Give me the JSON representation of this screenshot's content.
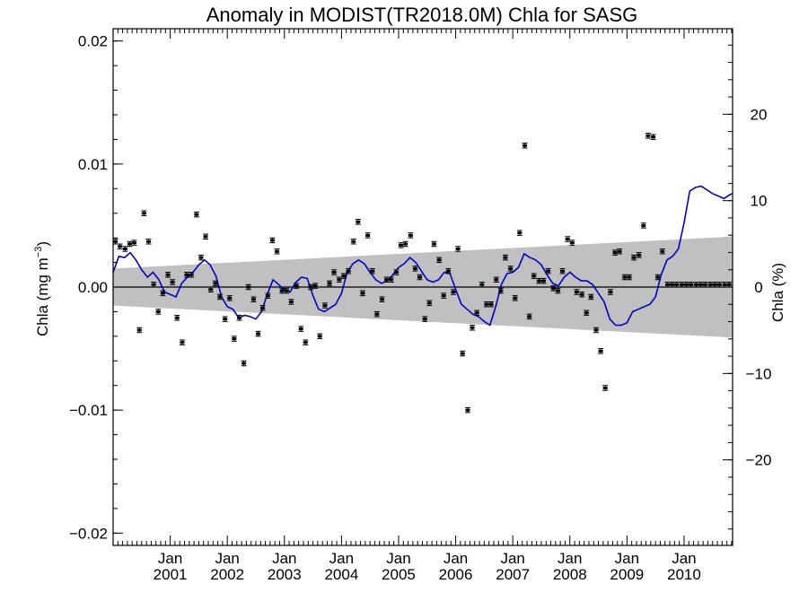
{
  "chart_data": {
    "type": "scatter",
    "title": "Anomaly in MODIST(TR2018.0M) Chla for SASG",
    "ylabel_left": {
      "main": "Chla (mg m",
      "sup": "−3",
      "close": ")"
    },
    "ylabel_right": "Chla (%)",
    "ylim_left": [
      -0.021,
      0.021
    ],
    "ylim_right": [
      -29.9,
      29.9
    ],
    "left_ticks": [
      {
        "value": 0.02,
        "label": "0.02"
      },
      {
        "value": 0.01,
        "label": "0.01"
      },
      {
        "value": 0.0,
        "label": "0.00"
      },
      {
        "value": -0.01,
        "label": "−0.01"
      },
      {
        "value": -0.02,
        "label": "−0.02"
      }
    ],
    "right_ticks": [
      {
        "value": 20,
        "label": "20"
      },
      {
        "value": 10,
        "label": "10"
      },
      {
        "value": 0,
        "label": "0"
      },
      {
        "value": -10,
        "label": "−10"
      },
      {
        "value": -20,
        "label": "−20"
      }
    ],
    "x_range_years": [
      2000.0,
      2010.85
    ],
    "x_ticks": [
      {
        "value": 2001.0,
        "month": "Jan",
        "year": "2001"
      },
      {
        "value": 2002.0,
        "month": "Jan",
        "year": "2002"
      },
      {
        "value": 2003.0,
        "month": "Jan",
        "year": "2003"
      },
      {
        "value": 2004.0,
        "month": "Jan",
        "year": "2004"
      },
      {
        "value": 2005.0,
        "month": "Jan",
        "year": "2005"
      },
      {
        "value": 2006.0,
        "month": "Jan",
        "year": "2006"
      },
      {
        "value": 2007.0,
        "month": "Jan",
        "year": "2007"
      },
      {
        "value": 2008.0,
        "month": "Jan",
        "year": "2008"
      },
      {
        "value": 2009.0,
        "month": "Jan",
        "year": "2009"
      },
      {
        "value": 2010.0,
        "month": "Jan",
        "year": "2010"
      }
    ],
    "band": {
      "x": [
        2000.0,
        2010.85
      ],
      "upper": [
        0.0015,
        0.0041
      ],
      "lower": [
        -0.0015,
        -0.0041
      ],
      "color": "#c0c0c0"
    },
    "line_color": "#0000cc",
    "points_color": "#000000",
    "errorbar_halfwidth": 0.0002,
    "series": [
      {
        "kind": "monthly_anomaly",
        "x": [
          2000.04,
          2000.12,
          2000.21,
          2000.29,
          2000.37,
          2000.46,
          2000.54,
          2000.62,
          2000.71,
          2000.79,
          2000.87,
          2000.96,
          2001.04,
          2001.12,
          2001.21,
          2001.29,
          2001.37,
          2001.46,
          2001.54,
          2001.62,
          2001.71,
          2001.79,
          2001.87,
          2001.96,
          2002.04,
          2002.12,
          2002.21,
          2002.29,
          2002.37,
          2002.46,
          2002.54,
          2002.62,
          2002.71,
          2002.79,
          2002.87,
          2002.96,
          2003.04,
          2003.12,
          2003.21,
          2003.29,
          2003.37,
          2003.46,
          2003.54,
          2003.62,
          2003.71,
          2003.79,
          2003.87,
          2003.96,
          2004.04,
          2004.12,
          2004.21,
          2004.29,
          2004.37,
          2004.46,
          2004.54,
          2004.62,
          2004.71,
          2004.79,
          2004.87,
          2004.96,
          2005.04,
          2005.12,
          2005.21,
          2005.29,
          2005.37,
          2005.46,
          2005.54,
          2005.62,
          2005.71,
          2005.79,
          2005.87,
          2005.96,
          2006.04,
          2006.12,
          2006.21,
          2006.29,
          2006.37,
          2006.46,
          2006.54,
          2006.62,
          2006.71,
          2006.79,
          2006.87,
          2006.96,
          2007.04,
          2007.12,
          2007.21,
          2007.29,
          2007.37,
          2007.46,
          2007.54,
          2007.62,
          2007.71,
          2007.79,
          2007.87,
          2007.96,
          2008.04,
          2008.12,
          2008.21,
          2008.29,
          2008.37,
          2008.46,
          2008.54,
          2008.62,
          2008.71,
          2008.79,
          2008.87,
          2008.96,
          2009.04,
          2009.12,
          2009.21,
          2009.29,
          2009.37,
          2009.46,
          2009.54,
          2009.62,
          2009.71,
          2009.79,
          2009.87,
          2009.96,
          2010.04,
          2010.12,
          2010.21,
          2010.29,
          2010.37,
          2010.46,
          2010.54,
          2010.62,
          2010.71,
          2010.79
        ],
        "y": [
          0.0037,
          0.0033,
          0.0031,
          0.0035,
          0.0036,
          -0.0035,
          0.006,
          0.0037,
          0.0002,
          -0.002,
          -0.0005,
          0.001,
          0.0004,
          -0.0025,
          -0.0045,
          0.001,
          0.001,
          0.0059,
          0.0024,
          0.0041,
          -0.0002,
          0.0003,
          -0.0008,
          -0.0026,
          -0.0009,
          -0.0042,
          -0.0025,
          -0.0062,
          0.0,
          -0.001,
          -0.0038,
          -0.0017,
          -0.0007,
          0.0038,
          0.0029,
          -0.0003,
          -0.0003,
          -0.0012,
          0.0001,
          -0.0034,
          -0.0045,
          0.0,
          0.0001,
          -0.004,
          -0.0015,
          0.0003,
          0.0012,
          0.0006,
          0.0009,
          0.0013,
          0.0037,
          0.0053,
          -0.0005,
          0.0042,
          0.0013,
          -0.0022,
          -0.001,
          0.0006,
          0.0006,
          0.0012,
          0.0034,
          0.0035,
          0.0042,
          0.0015,
          0.0008,
          -0.0026,
          -0.0013,
          0.0035,
          0.0022,
          -0.0007,
          0.0013,
          -0.0004,
          0.0031,
          -0.0054,
          -0.01,
          -0.0033,
          -0.0021,
          0.0002,
          -0.0014,
          -0.0014,
          0.0006,
          -0.0003,
          0.0024,
          0.0015,
          -0.0009,
          0.0044,
          0.0115,
          -0.0024,
          0.0009,
          0.0005,
          0.0005,
          0.0013,
          -0.0001,
          -0.0003,
          0.0013,
          0.0039,
          0.0036,
          -0.0004,
          -0.0006,
          -0.0021,
          -0.0008,
          -0.0035,
          -0.0052,
          -0.0082,
          -0.0004,
          0.0028,
          0.0029,
          0.0008,
          0.0008,
          0.0024,
          0.0026,
          0.005,
          0.0123,
          0.0122,
          0.0008,
          0.0029,
          0.0002,
          0.0002,
          0.0002,
          0.0002,
          0.0002,
          0.0002,
          0.0002,
          0.0002,
          0.0002,
          0.0002,
          0.0002,
          0.0002,
          0.0002,
          0.0002
        ]
      }
    ],
    "smooth_line": {
      "x": [
        2000.0,
        2000.1,
        2000.2,
        2000.3,
        2000.4,
        2000.5,
        2000.6,
        2000.7,
        2000.8,
        2000.9,
        2001.0,
        2001.1,
        2001.2,
        2001.3,
        2001.4,
        2001.5,
        2001.6,
        2001.7,
        2001.8,
        2001.9,
        2002.0,
        2002.1,
        2002.2,
        2002.3,
        2002.4,
        2002.5,
        2002.6,
        2002.7,
        2002.8,
        2002.9,
        2003.0,
        2003.1,
        2003.2,
        2003.3,
        2003.4,
        2003.5,
        2003.6,
        2003.7,
        2003.8,
        2003.9,
        2004.0,
        2004.1,
        2004.2,
        2004.3,
        2004.4,
        2004.5,
        2004.6,
        2004.7,
        2004.8,
        2004.9,
        2005.0,
        2005.1,
        2005.2,
        2005.3,
        2005.4,
        2005.5,
        2005.6,
        2005.7,
        2005.8,
        2005.9,
        2006.0,
        2006.1,
        2006.2,
        2006.3,
        2006.4,
        2006.5,
        2006.6,
        2006.7,
        2006.8,
        2006.9,
        2007.0,
        2007.1,
        2007.2,
        2007.3,
        2007.4,
        2007.5,
        2007.6,
        2007.7,
        2007.8,
        2007.9,
        2008.0,
        2008.1,
        2008.2,
        2008.3,
        2008.4,
        2008.5,
        2008.6,
        2008.7,
        2008.8,
        2008.9,
        2009.0,
        2009.1,
        2009.2,
        2009.3,
        2009.4,
        2009.5,
        2009.6,
        2009.7,
        2009.8,
        2009.9,
        2010.0,
        2010.1,
        2010.2,
        2010.3,
        2010.4,
        2010.5,
        2010.6,
        2010.7,
        2010.8,
        2010.85
      ],
      "y": [
        0.0012,
        0.0025,
        0.0024,
        0.0028,
        0.0022,
        0.0014,
        0.0008,
        0.0012,
        0.0006,
        -0.0004,
        -0.0006,
        -0.0008,
        0.0003,
        0.0008,
        0.0012,
        0.0018,
        0.0022,
        0.0018,
        0.0009,
        -0.0008,
        -0.0016,
        -0.0018,
        -0.0025,
        -0.0023,
        -0.0024,
        -0.0026,
        -0.002,
        -0.0006,
        0.0006,
        0.0002,
        -0.0002,
        -0.0004,
        0.0004,
        0.0008,
        0.0007,
        -0.0007,
        -0.0018,
        -0.002,
        -0.0017,
        -0.0014,
        -0.0005,
        0.0012,
        0.0019,
        0.0022,
        0.0019,
        0.0012,
        0.0006,
        0.0003,
        0.0005,
        0.001,
        0.0016,
        0.0019,
        0.0024,
        0.002,
        0.0013,
        0.0006,
        0.0004,
        0.0006,
        0.0012,
        0.0011,
        -0.0002,
        -0.0014,
        -0.0018,
        -0.0022,
        -0.0024,
        -0.0028,
        -0.0031,
        -0.0016,
        0.0002,
        0.0011,
        0.0012,
        0.0016,
        0.0027,
        0.0024,
        0.0022,
        0.0018,
        0.001,
        0.0003,
        0.0001,
        0.0008,
        0.0012,
        0.0008,
        0.0005,
        0.0005,
        0.0002,
        -0.0005,
        -0.0012,
        -0.0026,
        -0.0031,
        -0.0031,
        -0.0029,
        -0.002,
        -0.0018,
        -0.0016,
        -0.0014,
        -0.0008,
        0.001,
        0.0022,
        0.0025,
        0.0031,
        0.0052,
        0.0078,
        0.0081,
        0.0082,
        0.0079,
        0.0076,
        0.0074,
        0.0072,
        0.0075,
        0.0076
      ]
    }
  }
}
